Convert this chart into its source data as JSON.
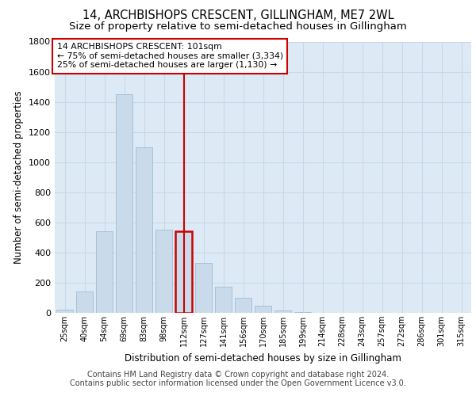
{
  "title_line1": "14, ARCHBISHOPS CRESCENT, GILLINGHAM, ME7 2WL",
  "title_line2": "Size of property relative to semi-detached houses in Gillingham",
  "xlabel": "Distribution of semi-detached houses by size in Gillingham",
  "ylabel": "Number of semi-detached properties",
  "categories": [
    "25sqm",
    "40sqm",
    "54sqm",
    "69sqm",
    "83sqm",
    "98sqm",
    "112sqm",
    "127sqm",
    "141sqm",
    "156sqm",
    "170sqm",
    "185sqm",
    "199sqm",
    "214sqm",
    "228sqm",
    "243sqm",
    "257sqm",
    "272sqm",
    "286sqm",
    "301sqm",
    "315sqm"
  ],
  "values": [
    20,
    140,
    540,
    1450,
    1100,
    550,
    540,
    330,
    175,
    100,
    45,
    15,
    5,
    0,
    0,
    0,
    0,
    0,
    0,
    0,
    0
  ],
  "bar_color": "#c9daea",
  "bar_edgecolor": "#a0bcd4",
  "highlight_bar_index": 6,
  "highlight_bar_edgecolor": "#cc0000",
  "vline_color": "#cc0000",
  "annotation_text": "14 ARCHBISHOPS CRESCENT: 101sqm\n← 75% of semi-detached houses are smaller (3,334)\n25% of semi-detached houses are larger (1,130) →",
  "annotation_box_facecolor": "#ffffff",
  "annotation_box_edgecolor": "#cc0000",
  "ylim": [
    0,
    1800
  ],
  "yticks": [
    0,
    200,
    400,
    600,
    800,
    1000,
    1200,
    1400,
    1600,
    1800
  ],
  "grid_color": "#c8d8e8",
  "background_color": "#ddeaf5",
  "footer_line1": "Contains HM Land Registry data © Crown copyright and database right 2024.",
  "footer_line2": "Contains public sector information licensed under the Open Government Licence v3.0.",
  "title_fontsize": 10.5,
  "subtitle_fontsize": 9.5,
  "annotation_fontsize": 7.8,
  "axis_label_fontsize": 8.5,
  "tick_fontsize": 7,
  "footer_fontsize": 7
}
